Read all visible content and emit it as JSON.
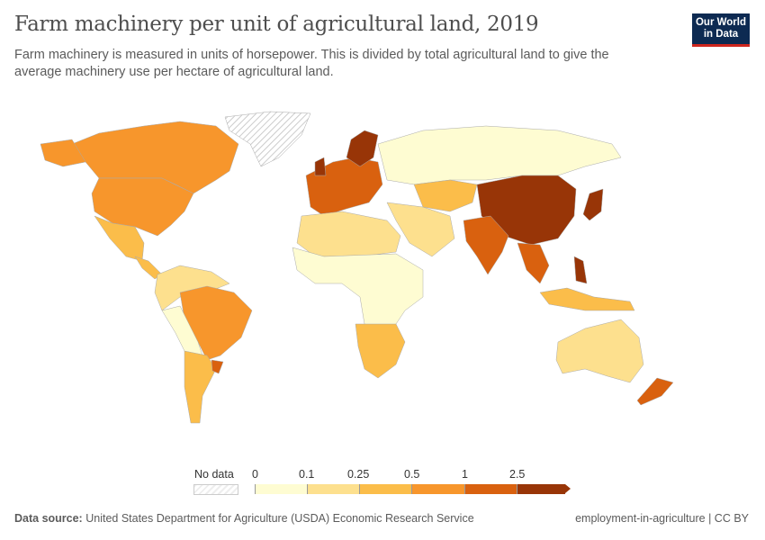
{
  "header": {
    "title": "Farm machinery per unit of agricultural land, 2019",
    "subtitle": "Farm machinery is measured in units of horsepower. This is divided by total agricultural land to give the average machinery use per hectare of agricultural land.",
    "logo": "Our World in Data"
  },
  "colors": {
    "bin0": "#fefcd2",
    "bin1": "#fde08e",
    "bin2": "#fbbd4a",
    "bin3": "#f7962c",
    "bin4": "#d9610f",
    "bin5": "#983507",
    "nodata": "#eeeeee"
  },
  "legend": {
    "no_data": "No data",
    "ticks": [
      "0",
      "0.1",
      "0.25",
      "0.5",
      "1",
      "2.5"
    ]
  },
  "footer": {
    "source_label": "Data source:",
    "source": "United States Department for Agriculture (USDA) Economic Research Service",
    "right": "employment-in-agriculture | CC BY"
  }
}
